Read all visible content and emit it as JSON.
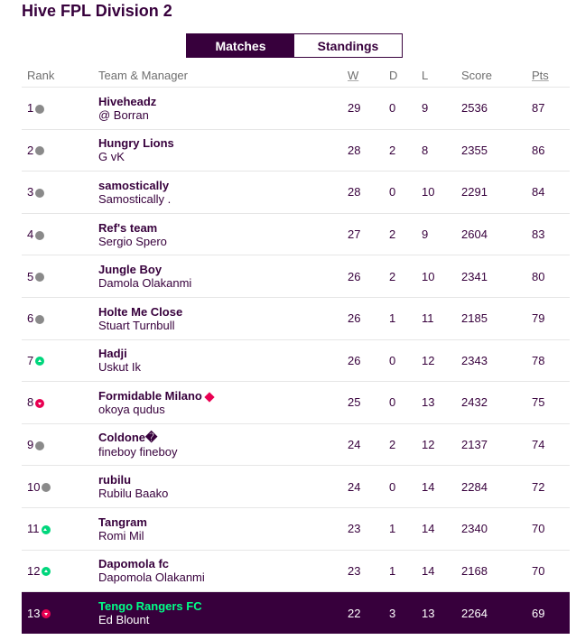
{
  "title": "Hive FPL Division 2",
  "tabs": {
    "matches": "Matches",
    "standings": "Standings"
  },
  "headers": {
    "rank": "Rank",
    "team": "Team & Manager",
    "w": "W",
    "d": "D",
    "l": "L",
    "score": "Score",
    "pts": "Pts"
  },
  "colors": {
    "primary": "#37003c",
    "up": "#00d67c",
    "down": "#e90052",
    "highlight_text": "#00ff87"
  },
  "rows": [
    {
      "rank": "1",
      "move": "same",
      "team": "Hiveheadz",
      "manager": "@ Borran",
      "w": "29",
      "d": "0",
      "l": "9",
      "score": "2536",
      "pts": "87"
    },
    {
      "rank": "2",
      "move": "same",
      "team": "Hungry Lions",
      "manager": "G vK",
      "w": "28",
      "d": "2",
      "l": "8",
      "score": "2355",
      "pts": "86"
    },
    {
      "rank": "3",
      "move": "same",
      "team": "samostically",
      "manager": "Samostically .",
      "w": "28",
      "d": "0",
      "l": "10",
      "score": "2291",
      "pts": "84"
    },
    {
      "rank": "4",
      "move": "same",
      "team": "Ref's team",
      "manager": "Sergio Spero",
      "w": "27",
      "d": "2",
      "l": "9",
      "score": "2604",
      "pts": "83"
    },
    {
      "rank": "5",
      "move": "same",
      "team": "Jungle Boy",
      "manager": "Damola Olakanmi",
      "w": "26",
      "d": "2",
      "l": "10",
      "score": "2341",
      "pts": "80"
    },
    {
      "rank": "6",
      "move": "same",
      "team": "Holte Me Close",
      "manager": "Stuart Turnbull",
      "w": "26",
      "d": "1",
      "l": "11",
      "score": "2185",
      "pts": "79"
    },
    {
      "rank": "7",
      "move": "up",
      "team": "Hadji",
      "manager": "Uskut Ik",
      "w": "26",
      "d": "0",
      "l": "12",
      "score": "2343",
      "pts": "78"
    },
    {
      "rank": "8",
      "move": "down",
      "team": "Formidable Milano",
      "manager": "okoya qudus",
      "w": "25",
      "d": "0",
      "l": "13",
      "score": "2432",
      "pts": "75",
      "diamond": true
    },
    {
      "rank": "9",
      "move": "same",
      "team": "Coldone�",
      "manager": "fineboy fineboy",
      "w": "24",
      "d": "2",
      "l": "12",
      "score": "2137",
      "pts": "74"
    },
    {
      "rank": "10",
      "move": "same",
      "team": "rubilu",
      "manager": "Rubilu Baako",
      "w": "24",
      "d": "0",
      "l": "14",
      "score": "2284",
      "pts": "72"
    },
    {
      "rank": "11",
      "move": "up",
      "team": "Tangram",
      "manager": "Romi Mil",
      "w": "23",
      "d": "1",
      "l": "14",
      "score": "2340",
      "pts": "70"
    },
    {
      "rank": "12",
      "move": "up",
      "team": "Dapomola fc",
      "manager": "Dapomola Olakanmi",
      "w": "23",
      "d": "1",
      "l": "14",
      "score": "2168",
      "pts": "70"
    },
    {
      "rank": "13",
      "move": "down",
      "team": "Tengo Rangers FC",
      "manager": "Ed Blount",
      "w": "22",
      "d": "3",
      "l": "13",
      "score": "2264",
      "pts": "69",
      "highlight": true
    }
  ]
}
